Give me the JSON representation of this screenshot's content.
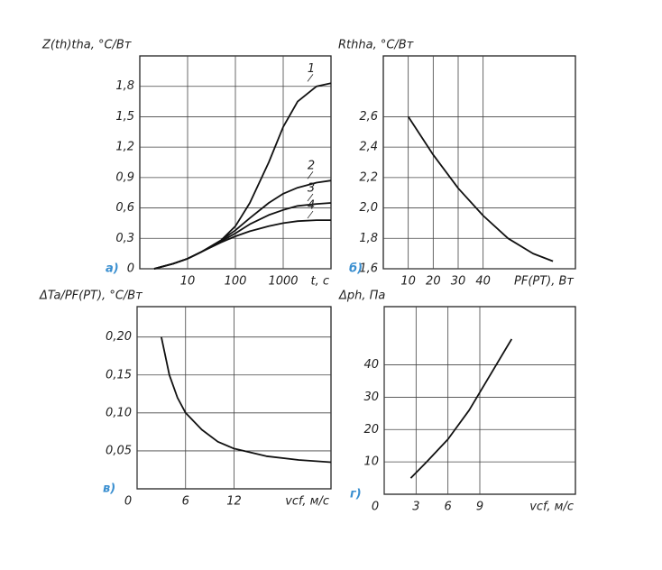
{
  "chart_data": [
    {
      "type": "line",
      "panel_label": "а)",
      "title": "Z(th)tha, °C/Вт",
      "x_label": "t, c",
      "xscale": "log",
      "grid": true,
      "color": "#111",
      "x": [
        2,
        5,
        10,
        20,
        50,
        100,
        200,
        500,
        1000,
        2000,
        5000,
        10000
      ],
      "xlim": [
        1,
        10000
      ],
      "xticks": [
        10,
        100,
        1000
      ],
      "ylim": [
        0,
        2.1
      ],
      "yticks": [
        0,
        {
          "value": 0.3,
          "label": "0,3"
        },
        {
          "value": 0.6,
          "label": "0,6"
        },
        {
          "value": 0.9,
          "label": "0,9"
        },
        {
          "value": 1.2,
          "label": "1,2"
        },
        {
          "value": 1.5,
          "label": "1,5"
        },
        {
          "value": 1.8,
          "label": "1,8"
        }
      ],
      "series": [
        {
          "name": "1",
          "values": [
            0,
            0.05,
            0.1,
            0.17,
            0.28,
            0.42,
            0.65,
            1.05,
            1.4,
            1.65,
            1.8,
            1.83
          ]
        },
        {
          "name": "2",
          "values": [
            0,
            0.05,
            0.1,
            0.17,
            0.28,
            0.38,
            0.5,
            0.65,
            0.74,
            0.8,
            0.85,
            0.87
          ]
        },
        {
          "name": "3",
          "values": [
            0,
            0.05,
            0.1,
            0.17,
            0.27,
            0.35,
            0.44,
            0.53,
            0.58,
            0.62,
            0.64,
            0.65
          ]
        },
        {
          "name": "4",
          "values": [
            0,
            0.05,
            0.1,
            0.17,
            0.26,
            0.32,
            0.37,
            0.42,
            0.45,
            0.47,
            0.48,
            0.48
          ]
        }
      ]
    },
    {
      "type": "line",
      "panel_label": "б)",
      "title": "Rthha, °C/Вт",
      "x_label": "PF(PT), Вт",
      "grid": true,
      "color": "#111",
      "x": [
        10,
        20,
        30,
        40,
        50,
        60,
        68
      ],
      "xlim": [
        0,
        77
      ],
      "xticks": [
        10,
        20,
        30,
        40
      ],
      "ylim": [
        1.6,
        3.0
      ],
      "yticks": [
        {
          "value": 1.6,
          "label": "1,6"
        },
        {
          "value": 1.8,
          "label": "1,8"
        },
        {
          "value": 2.0,
          "label": "2,0"
        },
        {
          "value": 2.2,
          "label": "2,2"
        },
        {
          "value": 2.4,
          "label": "2,4"
        },
        {
          "value": 2.6,
          "label": "2,6"
        }
      ],
      "series": [
        {
          "values": [
            2.6,
            2.35,
            2.13,
            1.95,
            1.8,
            1.7,
            1.65
          ]
        }
      ]
    },
    {
      "type": "line",
      "panel_label": "в)",
      "title": "ΔTa/PF(PT), °C/Вт",
      "x_label": "vcf, м/с",
      "grid": true,
      "color": "#111",
      "x": [
        3,
        4,
        5,
        6,
        8,
        10,
        12,
        16,
        20,
        24
      ],
      "xlim": [
        0,
        24
      ],
      "xticks": [
        0,
        6,
        12
      ],
      "ylim": [
        0,
        0.24
      ],
      "yticks": [
        {
          "value": 0.05,
          "label": "0,05"
        },
        {
          "value": 0.1,
          "label": "0,10"
        },
        {
          "value": 0.15,
          "label": "0,15"
        },
        {
          "value": 0.2,
          "label": "0,20"
        }
      ],
      "series": [
        {
          "values": [
            0.2,
            0.15,
            0.12,
            0.1,
            0.078,
            0.062,
            0.053,
            0.043,
            0.038,
            0.035
          ]
        }
      ]
    },
    {
      "type": "line",
      "panel_label": "г)",
      "title": "Δph, Па",
      "x_label": "vcf, м/с",
      "grid": true,
      "color": "#111",
      "x": [
        2.5,
        4,
        6,
        8,
        10,
        12
      ],
      "xlim": [
        0,
        18
      ],
      "xticks": [
        0,
        3,
        6,
        9
      ],
      "ylim": [
        0,
        58
      ],
      "yticks": [
        10,
        20,
        30,
        40
      ],
      "series": [
        {
          "values": [
            5,
            10,
            17,
            26,
            37,
            48
          ]
        }
      ]
    }
  ]
}
